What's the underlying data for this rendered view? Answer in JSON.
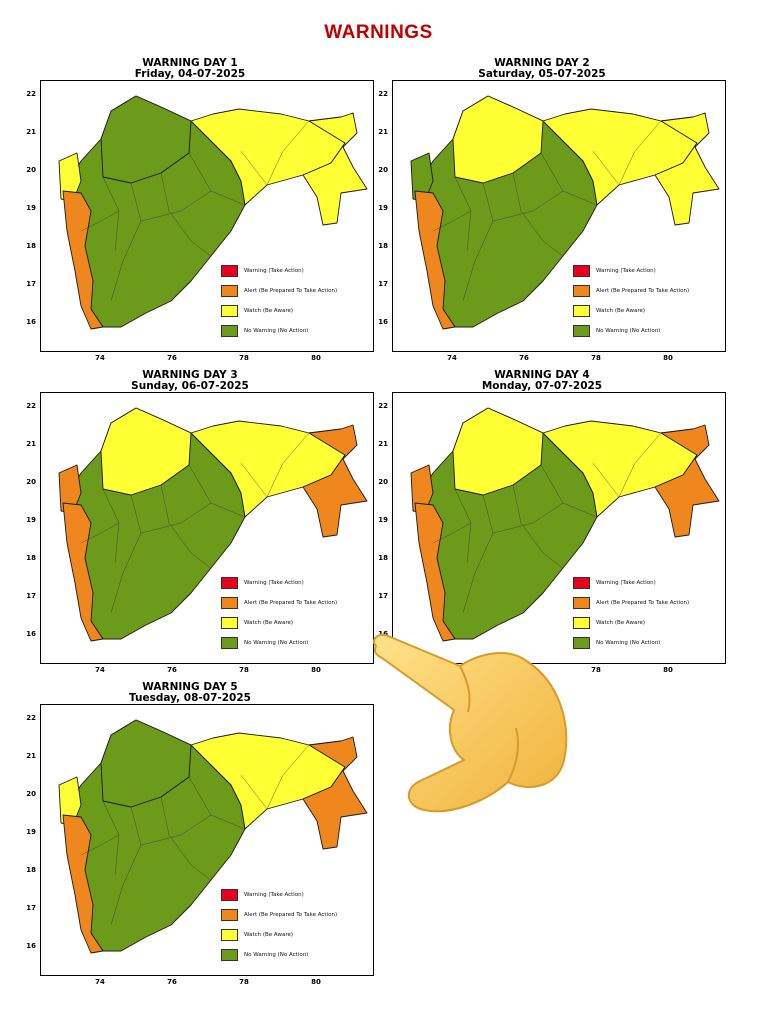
{
  "page": {
    "title": "WARNINGS"
  },
  "colors": {
    "red": "#e8001c",
    "orange": "#f0871e",
    "yellow": "#ffff33",
    "green": "#6c9a1a",
    "title_red": "#c00000"
  },
  "axes": {
    "y_ticks": [
      "22",
      "21",
      "20",
      "19",
      "18",
      "17",
      "16"
    ],
    "x_ticks": [
      "74",
      "76",
      "78",
      "80"
    ]
  },
  "legend": [
    {
      "label": "Warning (Take Action)",
      "color": "red"
    },
    {
      "label": "Alert (Be Prepared To Take Action)",
      "color": "orange"
    },
    {
      "label": "Watch (Be Aware)",
      "color": "yellow"
    },
    {
      "label": "No Warning (No Action)",
      "color": "green"
    }
  ],
  "days": [
    {
      "title": "WARNING DAY 1",
      "date": "Friday, 04-07-2025",
      "regions": {
        "northwest": "green",
        "east": "yellow",
        "konkan": "orange",
        "central": "green",
        "west_strip": "yellow",
        "far_east": "yellow"
      }
    },
    {
      "title": "WARNING DAY 2",
      "date": "Saturday, 05-07-2025",
      "regions": {
        "northwest": "yellow",
        "east": "yellow",
        "konkan": "orange",
        "central": "green",
        "west_strip": "green",
        "far_east": "yellow"
      }
    },
    {
      "title": "WARNING DAY 3",
      "date": "Sunday, 06-07-2025",
      "regions": {
        "northwest": "yellow",
        "east": "yellow",
        "konkan": "orange",
        "central": "green",
        "west_strip": "orange",
        "far_east": "orange"
      }
    },
    {
      "title": "WARNING DAY 4",
      "date": "Monday, 07-07-2025",
      "regions": {
        "northwest": "yellow",
        "east": "yellow",
        "konkan": "orange",
        "central": "green",
        "west_strip": "orange",
        "far_east": "orange"
      }
    },
    {
      "title": "WARNING DAY 5",
      "date": "Tuesday, 08-07-2025",
      "regions": {
        "northwest": "green",
        "east": "yellow",
        "konkan": "orange",
        "central": "green",
        "west_strip": "yellow",
        "far_east": "orange"
      }
    }
  ]
}
